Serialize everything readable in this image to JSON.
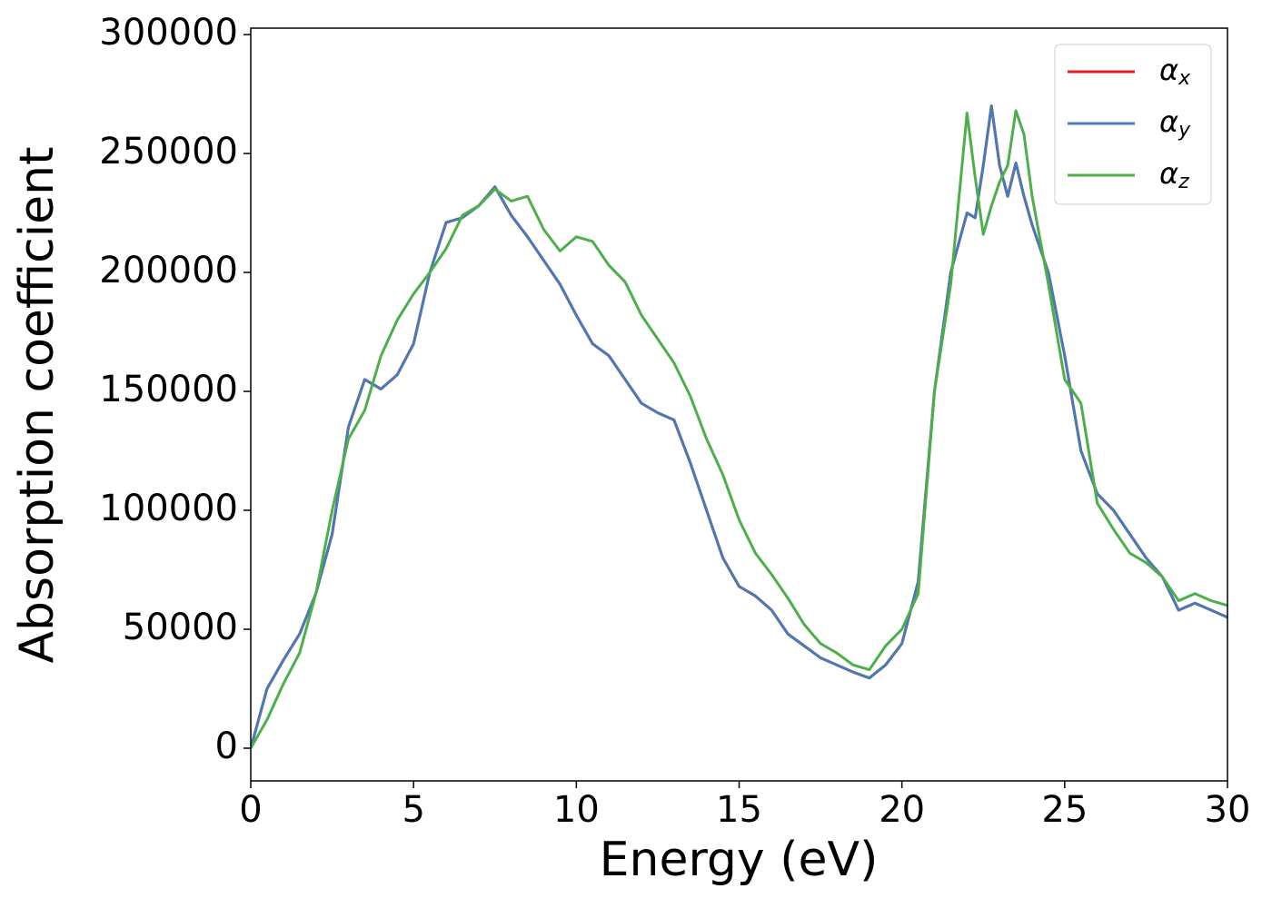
{
  "chart_data": {
    "type": "line",
    "xlabel": "Energy (eV)",
    "ylabel": "Absorption coefficient",
    "x": [
      0,
      0.5,
      1,
      1.5,
      2,
      2.5,
      3,
      3.5,
      4,
      4.5,
      5,
      5.5,
      6,
      6.5,
      7,
      7.5,
      8,
      8.5,
      9,
      9.5,
      10,
      10.5,
      11,
      11.5,
      12,
      12.5,
      13,
      13.5,
      14,
      14.5,
      15,
      15.5,
      16,
      16.5,
      17,
      17.5,
      18,
      18.5,
      19,
      19.5,
      20,
      20.5,
      21,
      21.5,
      22,
      22.25,
      22.5,
      22.75,
      23,
      23.25,
      23.5,
      23.75,
      24,
      24.5,
      25,
      25.5,
      26,
      26.5,
      27,
      27.5,
      28,
      28.5,
      29,
      29.5,
      30
    ],
    "series": [
      {
        "name": "αx",
        "color": "#e41a1c",
        "values": [
          0,
          25000,
          37000,
          48000,
          65000,
          90000,
          135000,
          155000,
          151000,
          157000,
          170000,
          200000,
          221000,
          223000,
          228000,
          236000,
          224000,
          215000,
          205000,
          195000,
          182000,
          170000,
          165000,
          155000,
          145000,
          141000,
          138000,
          120000,
          100000,
          80000,
          68000,
          64000,
          58000,
          48000,
          43000,
          38000,
          35000,
          32000,
          29500,
          35000,
          44000,
          70000,
          150000,
          200000,
          225000,
          223000,
          245000,
          270000,
          245000,
          232000,
          246000,
          232000,
          220000,
          200000,
          165000,
          125000,
          107000,
          100000,
          90000,
          80000,
          72000,
          58000,
          61000,
          58000,
          55000
        ]
      },
      {
        "name": "αy",
        "color": "#4a7ab5",
        "values": [
          0,
          25000,
          37000,
          48000,
          65000,
          90000,
          135000,
          155000,
          151000,
          157000,
          170000,
          200000,
          221000,
          223000,
          228000,
          236000,
          224000,
          215000,
          205000,
          195000,
          182000,
          170000,
          165000,
          155000,
          145000,
          141000,
          138000,
          120000,
          100000,
          80000,
          68000,
          64000,
          58000,
          48000,
          43000,
          38000,
          35000,
          32000,
          29500,
          35000,
          44000,
          70000,
          150000,
          200000,
          225000,
          223000,
          245000,
          270000,
          245000,
          232000,
          246000,
          232000,
          220000,
          200000,
          165000,
          125000,
          107000,
          100000,
          90000,
          80000,
          72000,
          58000,
          61000,
          58000,
          55000
        ]
      },
      {
        "name": "αz",
        "color": "#4daf4a",
        "values": [
          0,
          12000,
          27000,
          40000,
          65000,
          100000,
          130000,
          142000,
          165000,
          180000,
          191000,
          200000,
          210000,
          224000,
          228000,
          235000,
          230000,
          232000,
          218000,
          209000,
          215000,
          213000,
          203000,
          196000,
          182000,
          172000,
          162000,
          148000,
          130000,
          115000,
          96000,
          82000,
          73000,
          63000,
          52000,
          44000,
          40000,
          35000,
          33000,
          43000,
          50000,
          65000,
          150000,
          195000,
          267000,
          240000,
          216000,
          228000,
          238000,
          245000,
          268000,
          258000,
          232000,
          195000,
          155000,
          145000,
          103000,
          92000,
          82000,
          78000,
          72000,
          62000,
          65000,
          62000,
          60000
        ]
      }
    ],
    "xlim": [
      0,
      30
    ],
    "xticks": [
      0,
      5,
      10,
      15,
      20,
      25,
      30
    ],
    "ylim": [
      -13740,
      302700
    ],
    "yticks": [
      0,
      50000,
      100000,
      150000,
      200000,
      250000,
      300000
    ],
    "grid": false,
    "legend": "upper right"
  }
}
